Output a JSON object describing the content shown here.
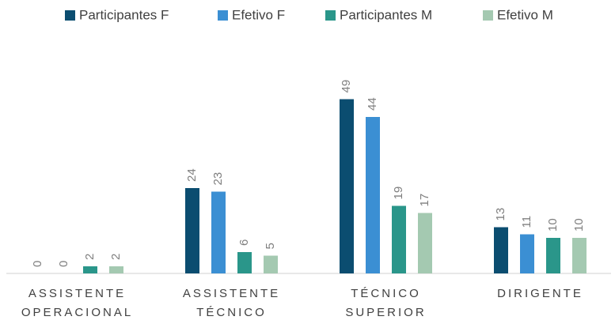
{
  "chart_data": {
    "type": "bar",
    "categories": [
      "ASSISTENTE OPERACIONAL",
      "ASSISTENTE TÉCNICO",
      "TÉCNICO SUPERIOR",
      "DIRIGENTE"
    ],
    "series": [
      {
        "name": "Participantes F",
        "color": "#0b4d70",
        "values": [
          0,
          24,
          49,
          13
        ]
      },
      {
        "name": "Efetivo F",
        "color": "#3b8fd3",
        "values": [
          0,
          23,
          44,
          11
        ]
      },
      {
        "name": "Participantes M",
        "color": "#2a968a",
        "values": [
          2,
          6,
          19,
          10
        ]
      },
      {
        "name": "Efetivo M",
        "color": "#a4c9b1",
        "values": [
          2,
          5,
          17,
          10
        ]
      }
    ],
    "legend": "top"
  }
}
